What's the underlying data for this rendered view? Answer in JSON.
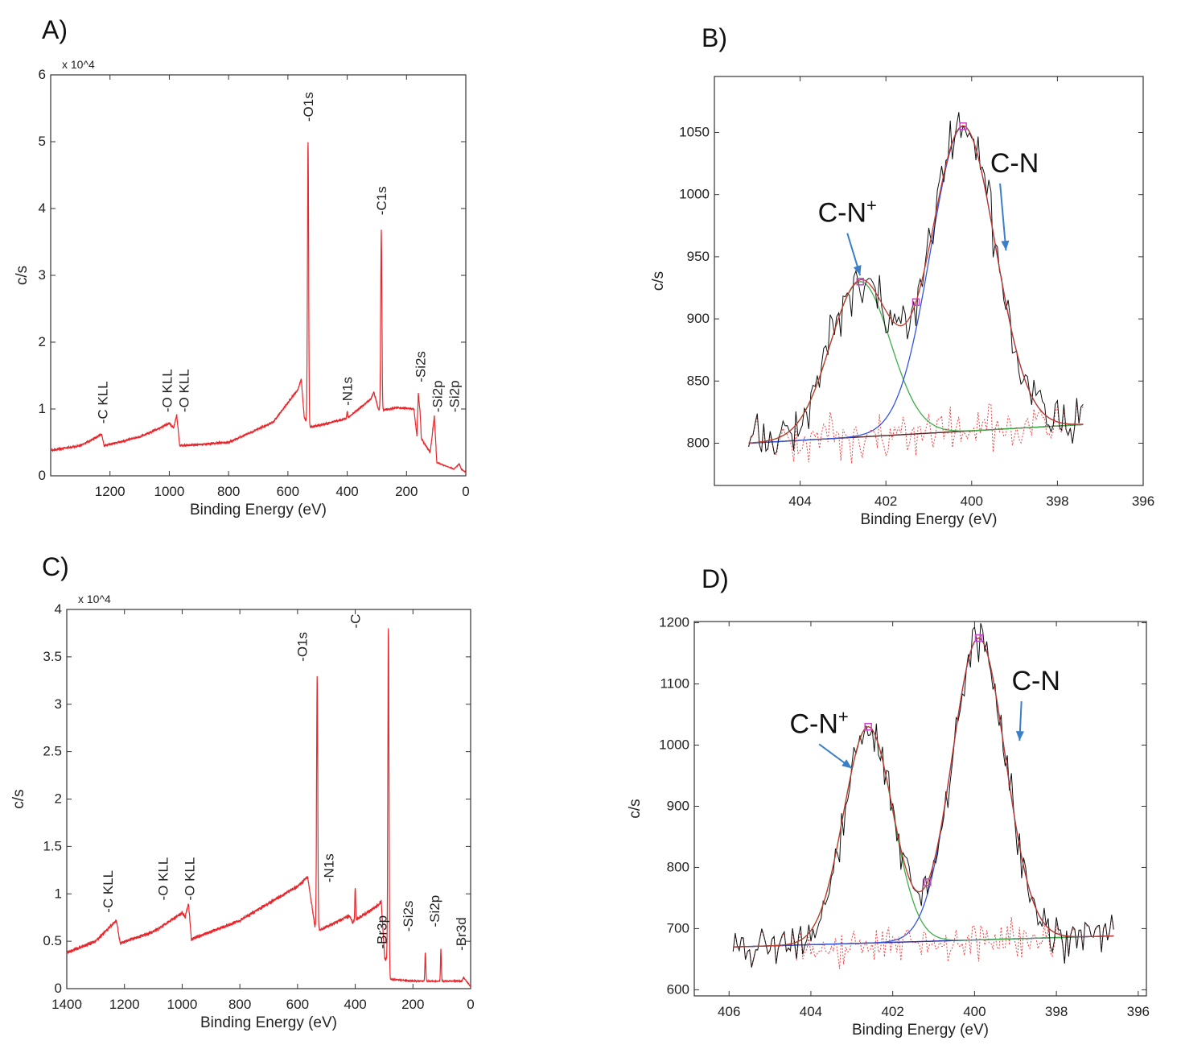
{
  "chart_data": [
    {
      "panel": "A)",
      "type": "line",
      "xlabel": "Binding Energy (eV)",
      "ylabel": "c/s",
      "y_multiplier": "x 10^4",
      "xlim": [
        1400,
        0
      ],
      "x_reversed": true,
      "ylim": [
        0,
        6
      ],
      "xticks": [
        "1200",
        "1000",
        "800",
        "600",
        "400",
        "200",
        "0"
      ],
      "yticks": [
        "0",
        "1",
        "2",
        "3",
        "4",
        "5",
        "6"
      ],
      "line_color": "#e8262b",
      "background": [
        [
          1400,
          0.38
        ],
        [
          1300,
          0.45
        ],
        [
          1228,
          0.62
        ],
        [
          1220,
          0.45
        ],
        [
          1100,
          0.58
        ],
        [
          1000,
          0.78
        ],
        [
          985,
          0.72
        ],
        [
          975,
          0.92
        ],
        [
          965,
          0.45
        ],
        [
          800,
          0.5
        ],
        [
          650,
          0.8
        ],
        [
          565,
          1.3
        ],
        [
          555,
          1.45
        ],
        [
          545,
          0.88
        ],
        [
          530,
          0.72
        ],
        [
          500,
          0.75
        ],
        [
          400,
          0.86
        ],
        [
          320,
          1.15
        ],
        [
          310,
          1.25
        ],
        [
          295,
          1.0
        ],
        [
          285,
          0.98
        ],
        [
          230,
          1.02
        ],
        [
          175,
          1.0
        ],
        [
          165,
          0.6
        ],
        [
          160,
          1.25
        ],
        [
          150,
          0.55
        ],
        [
          120,
          0.35
        ],
        [
          106,
          0.9
        ],
        [
          98,
          0.2
        ],
        [
          40,
          0.1
        ],
        [
          22,
          0.18
        ],
        [
          15,
          0.1
        ],
        [
          0,
          0.05
        ]
      ],
      "peaks": [
        [
          532,
          4.25,
          2
        ],
        [
          285,
          2.7,
          2
        ],
        [
          400,
          0.1,
          1.5
        ],
        [
          154,
          0.1,
          2
        ]
      ],
      "peak_labels": [
        {
          "text": "-C KLL",
          "x": 1225,
          "y": 0.78
        },
        {
          "text": "-O KLL",
          "x": 1008,
          "y": 0.95
        },
        {
          "text": "-O KLL",
          "x": 988,
          "y": 0.95
        },
        {
          "text": "-O1s",
          "x": 532,
          "y": 5.3
        },
        {
          "text": "-N1s",
          "x": 400,
          "y": 1.05
        },
        {
          "text": "-C1s",
          "x": 285,
          "y": 3.9
        },
        {
          "text": "-Si2s",
          "x": 153,
          "y": 1.4
        },
        {
          "text": "-Si2p",
          "x": 102,
          "y": 0.95
        },
        {
          "text": "-Si2p",
          "x": 96,
          "y": 0.95
        }
      ]
    },
    {
      "panel": "B)",
      "type": "line",
      "xlabel": "Binding Energy (eV)",
      "ylabel": "c/s",
      "xlim": [
        406,
        396
      ],
      "x_reversed": true,
      "ylim": [
        766,
        1095
      ],
      "xticks": [
        "404",
        "402",
        "400",
        "398",
        "396"
      ],
      "yticks": [
        "800",
        "850",
        "900",
        "950",
        "1000",
        "1050"
      ],
      "data_range": [
        405.2,
        397.4
      ],
      "baseline": [
        800,
        815
      ],
      "components": [
        {
          "name": "C-N+",
          "center": 402.6,
          "height": 930,
          "sigma": 0.7,
          "color": "#3fae49"
        },
        {
          "name": "C-N",
          "center": 400.2,
          "height": 1055,
          "sigma": 0.75,
          "color": "#3355dd"
        }
      ],
      "colors": {
        "raw": "#111111",
        "envelope": "#c0392b",
        "residual": "#f04040",
        "baseline": "#5a2a2a",
        "arrow": "#3a7fc8",
        "marker": "#cc44cc"
      },
      "annotations": [
        {
          "text": "C-N",
          "sup": "+",
          "x": 402.9,
          "y": 978,
          "arrow_to": [
            402.6,
            935
          ]
        },
        {
          "text": "C-N",
          "sup": "",
          "x": 399.0,
          "y": 1018,
          "arrow_to": [
            399.2,
            955
          ]
        }
      ]
    },
    {
      "panel": "C)",
      "type": "line",
      "xlabel": "Binding Energy (eV)",
      "ylabel": "c/s",
      "y_multiplier": "x 10^4",
      "xlim": [
        1400,
        0
      ],
      "x_reversed": true,
      "ylim": [
        0,
        4
      ],
      "xticks": [
        "1400",
        "1200",
        "1000",
        "800",
        "600",
        "400",
        "200",
        "0"
      ],
      "yticks": [
        "0",
        "0.5",
        "1",
        "1.5",
        "2",
        "2.5",
        "3",
        "3.5",
        "4"
      ],
      "line_color": "#e8262b",
      "background": [
        [
          1400,
          0.38
        ],
        [
          1300,
          0.5
        ],
        [
          1228,
          0.72
        ],
        [
          1215,
          0.48
        ],
        [
          1100,
          0.6
        ],
        [
          1000,
          0.8
        ],
        [
          990,
          0.76
        ],
        [
          978,
          0.9
        ],
        [
          968,
          0.52
        ],
        [
          800,
          0.72
        ],
        [
          600,
          1.08
        ],
        [
          565,
          1.18
        ],
        [
          540,
          0.66
        ],
        [
          520,
          0.62
        ],
        [
          420,
          0.77
        ],
        [
          410,
          0.7
        ],
        [
          320,
          0.88
        ],
        [
          310,
          0.92
        ],
        [
          298,
          0.32
        ],
        [
          288,
          0.3
        ],
        [
          282,
          0.1
        ],
        [
          200,
          0.08
        ],
        [
          30,
          0.08
        ],
        [
          25,
          0.12
        ],
        [
          0,
          0.02
        ]
      ],
      "peaks": [
        [
          532,
          2.65,
          2
        ],
        [
          285,
          3.6,
          2
        ],
        [
          400,
          0.35,
          1.5
        ],
        [
          157,
          0.3,
          1.5
        ],
        [
          103,
          0.33,
          1.5
        ]
      ],
      "peak_labels": [
        {
          "text": "-C KLL",
          "x": 1225,
          "y": 0.8
        },
        {
          "text": "-O KLL",
          "x": 1000,
          "y": 0.93
        },
        {
          "text": "-O KLL",
          "x": 980,
          "y": 0.93
        },
        {
          "text": "-O1s",
          "x": 532,
          "y": 3.45
        },
        {
          "text": "-N1s",
          "x": 400,
          "y": 1.12
        },
        {
          "text": "-C",
          "x": 285,
          "y": 3.8
        },
        {
          "text": "-Br3p",
          "x": 176,
          "y": 0.42
        },
        {
          "text": "-Si2s",
          "x": 158,
          "y": 0.6
        },
        {
          "text": "-Si2p",
          "x": 104,
          "y": 0.65
        },
        {
          "text": "-Br3d",
          "x": 68,
          "y": 0.4
        }
      ]
    },
    {
      "panel": "D)",
      "type": "line",
      "xlabel": "Binding Energy (eV)",
      "ylabel": "c/s",
      "xlim": [
        406.85,
        395.8
      ],
      "x_reversed": true,
      "ylim": [
        590,
        1202
      ],
      "xticks": [
        "406",
        "404",
        "402",
        "400",
        "398",
        "396"
      ],
      "yticks": [
        "600",
        "700",
        "800",
        "900",
        "1000",
        "1100",
        "1200"
      ],
      "data_range": [
        405.9,
        396.6
      ],
      "baseline": [
        670,
        688
      ],
      "components": [
        {
          "name": "C-N+",
          "center": 402.6,
          "height": 1030,
          "sigma": 0.6,
          "color": "#3fae49"
        },
        {
          "name": "C-N",
          "center": 399.9,
          "height": 1175,
          "sigma": 0.65,
          "color": "#3355dd"
        }
      ],
      "colors": {
        "raw": "#111111",
        "envelope": "#c0392b",
        "residual": "#f04040",
        "baseline": "#3333aa",
        "arrow": "#3a7fc8",
        "marker": "#cc44cc"
      },
      "annotations": [
        {
          "text": "C-N",
          "sup": "+",
          "x": 403.8,
          "y": 1020,
          "arrow_to": [
            403.0,
            962
          ]
        },
        {
          "text": "C-N",
          "sup": "",
          "x": 398.5,
          "y": 1090,
          "arrow_to": [
            398.9,
            1007
          ]
        }
      ]
    }
  ]
}
